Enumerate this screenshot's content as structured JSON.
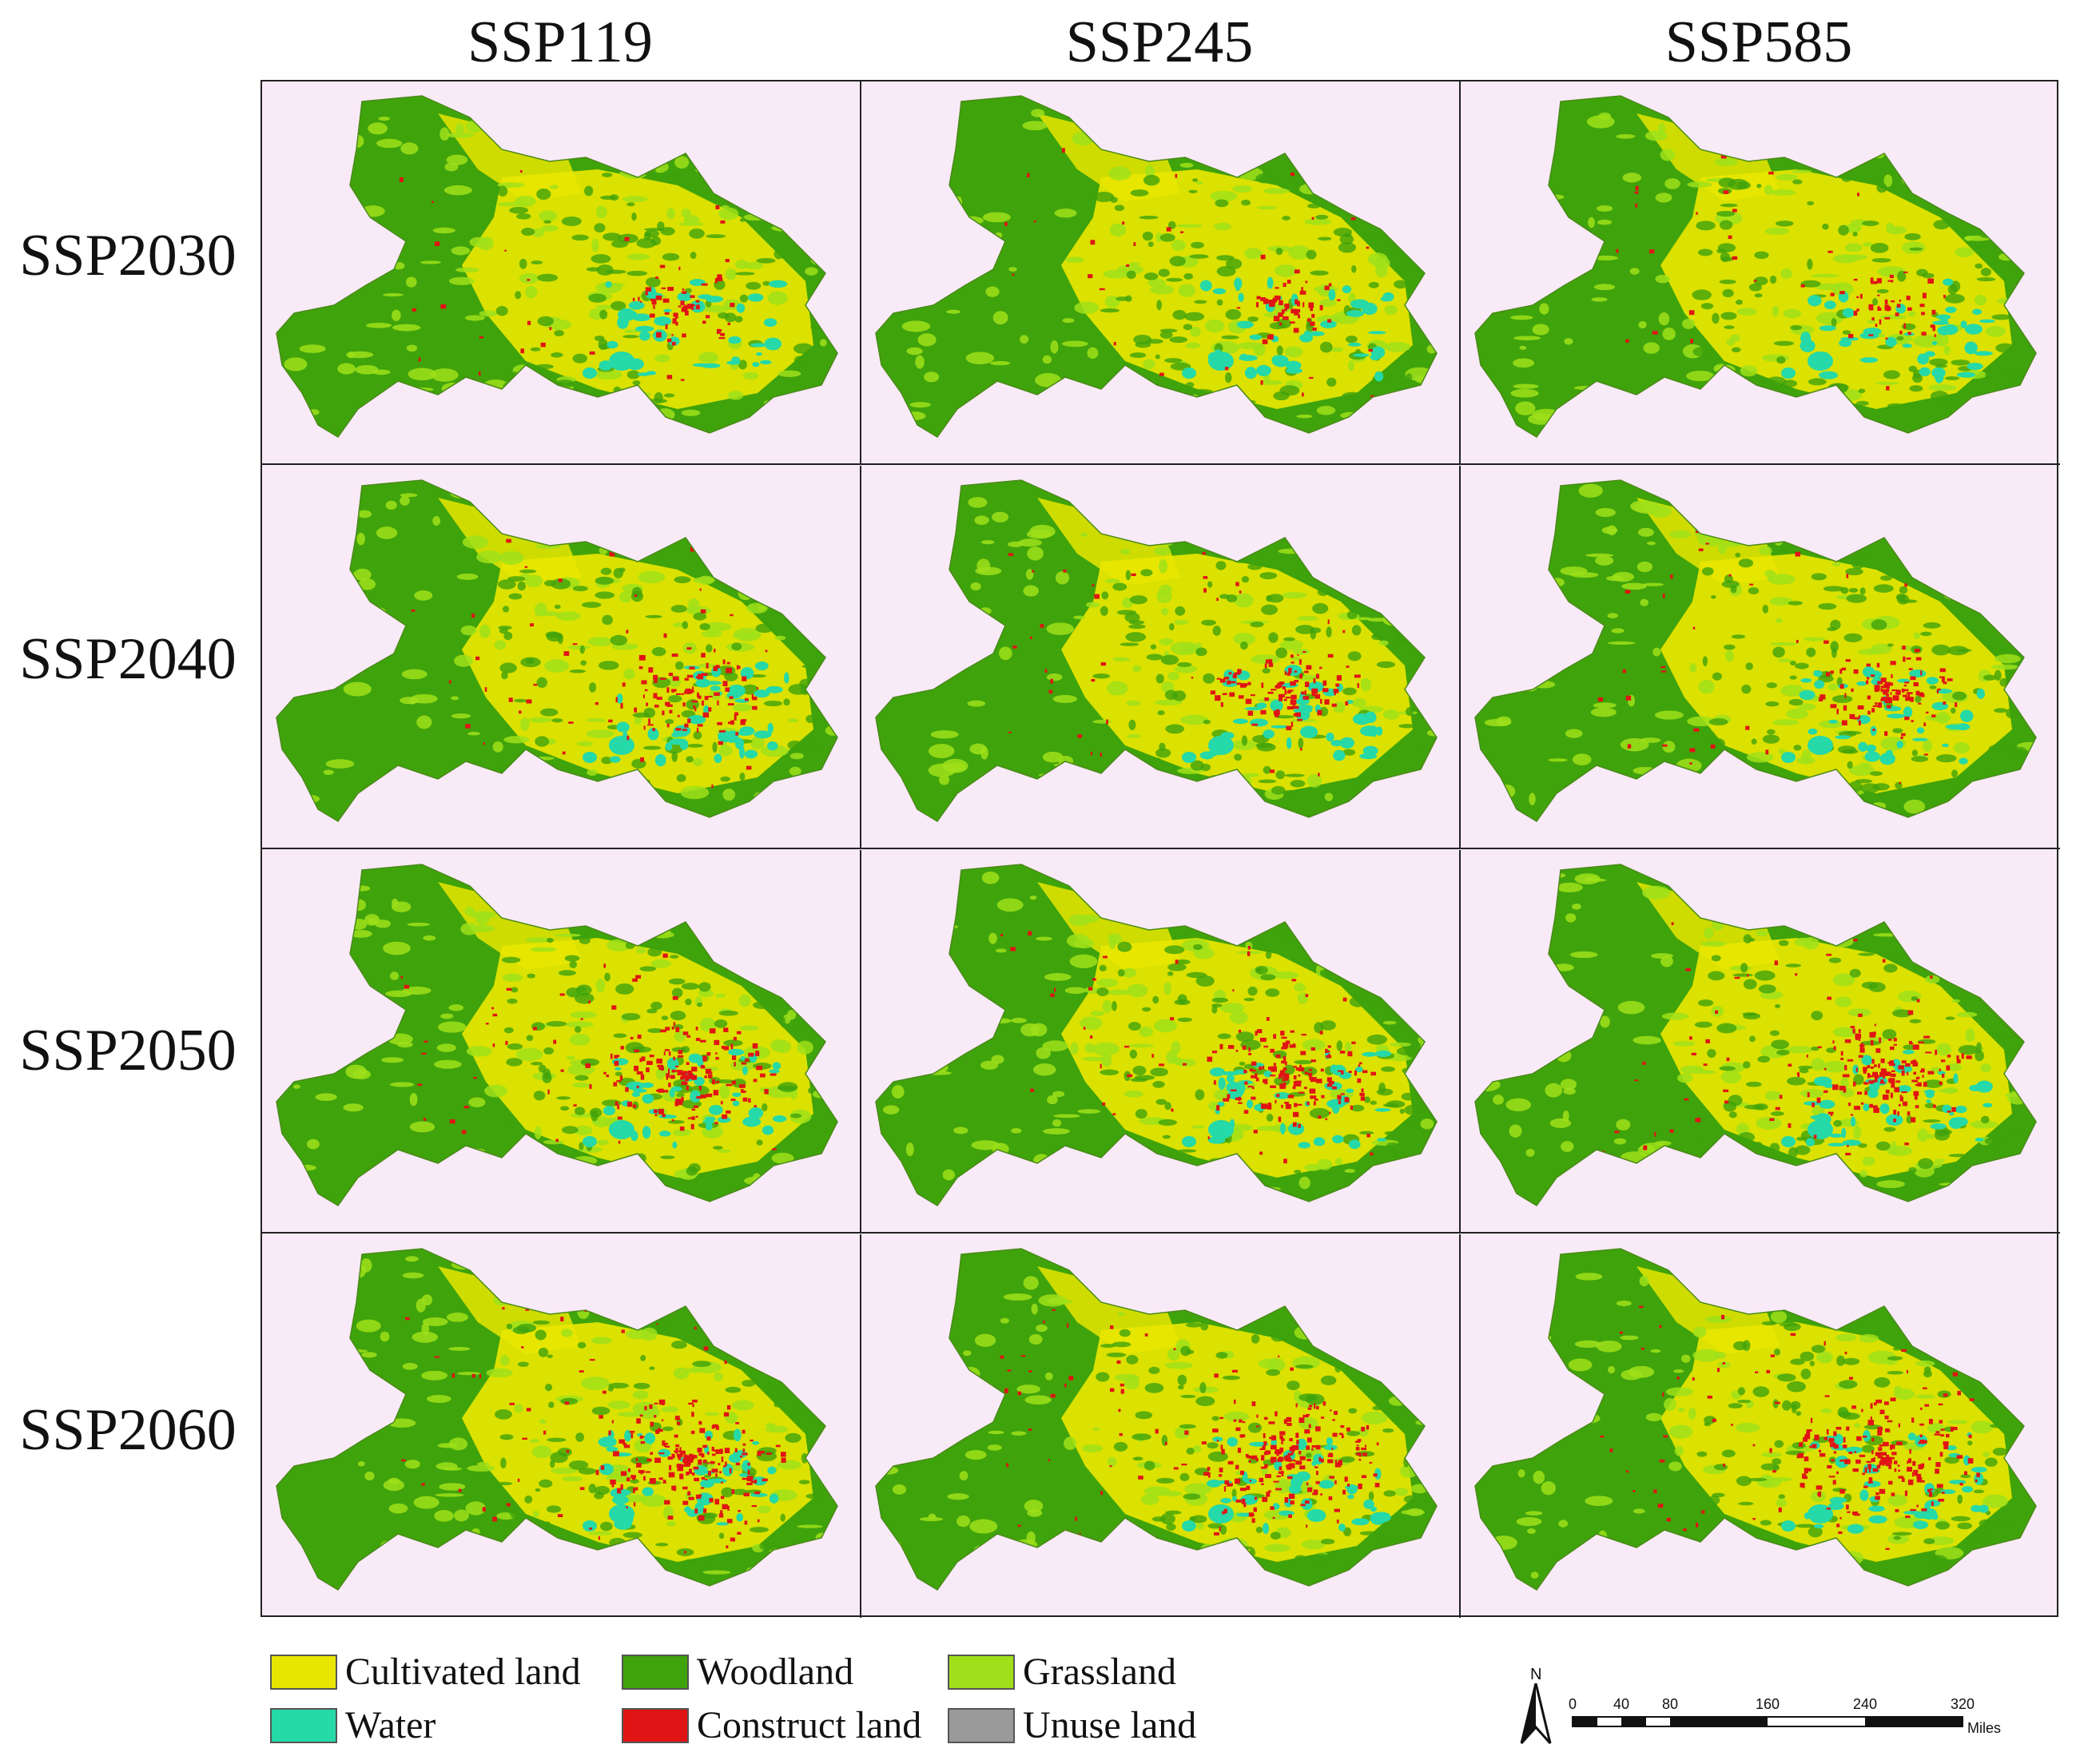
{
  "columns": [
    "SSP119",
    "SSP245",
    "SSP585"
  ],
  "rows": [
    "SSP2030",
    "SSP2040",
    "SSP2050",
    "SSP2060"
  ],
  "legend": [
    {
      "label": "Cultivated land",
      "color": "#e8e600"
    },
    {
      "label": "Woodland",
      "color": "#3fa30b"
    },
    {
      "label": "Grassland",
      "color": "#9fe01a"
    },
    {
      "label": "Water",
      "color": "#25d9a8"
    },
    {
      "label": "Construct land",
      "color": "#e01414"
    },
    {
      "label": "Unuse land",
      "color": "#9a9a9a"
    }
  ],
  "background_color": "#f9eaf7",
  "scale_bar": {
    "ticks": [
      "0",
      "40",
      "80",
      "160",
      "240",
      "320"
    ],
    "unit": "Miles",
    "north_label": "N"
  }
}
